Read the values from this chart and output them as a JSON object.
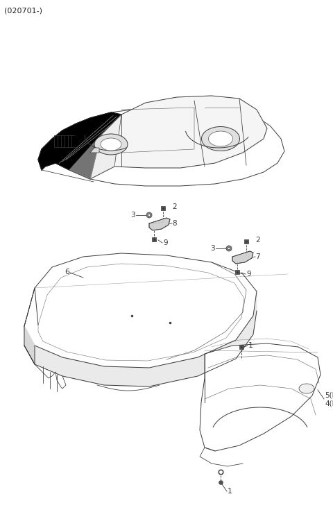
{
  "bg_color": "#ffffff",
  "line_color": "#3a3a3a",
  "fig_width": 4.8,
  "fig_height": 7.35,
  "dpi": 100,
  "corner_label": "(020701-)",
  "label_fs": 7.5,
  "lw": 0.7
}
